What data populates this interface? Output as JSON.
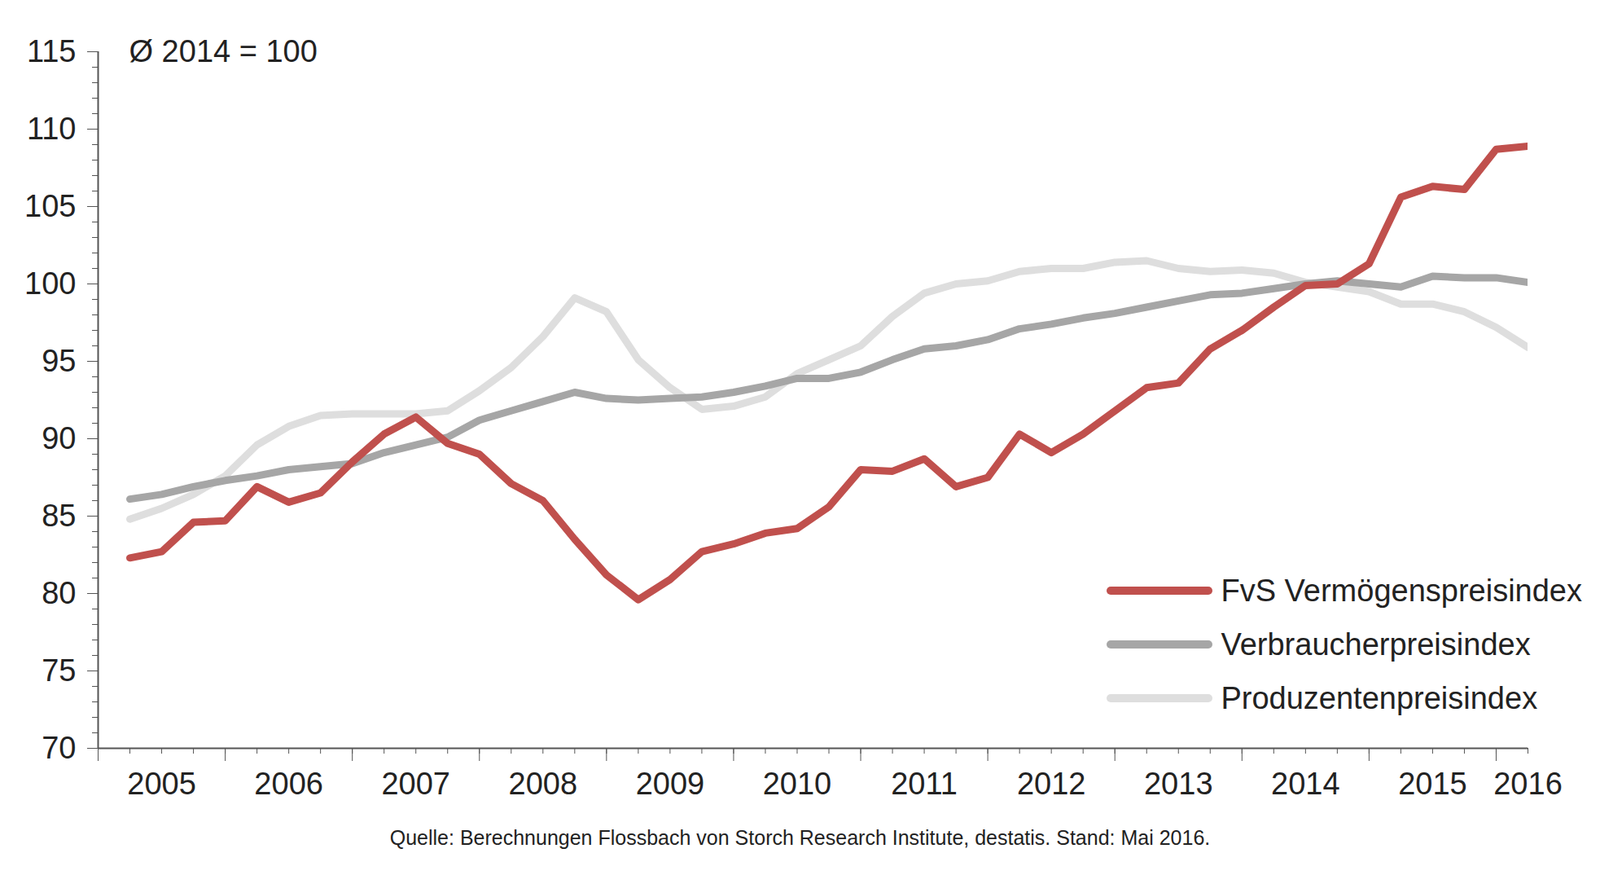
{
  "chart_data": {
    "type": "line",
    "annotation": "Ø 2014 = 100",
    "caption": "Quelle: Berechnungen Flossbach von Storch Research Institute, destatis. Stand: Mai 2016.",
    "legend": "bottom-right",
    "grid": false,
    "x": [
      2005.25,
      2005.5,
      2005.75,
      2006,
      2006.25,
      2006.5,
      2006.75,
      2007,
      2007.25,
      2007.5,
      2007.75,
      2008,
      2008.25,
      2008.5,
      2008.75,
      2009,
      2009.25,
      2009.5,
      2009.75,
      2010,
      2010.25,
      2010.5,
      2010.75,
      2011,
      2011.25,
      2011.5,
      2011.75,
      2012,
      2012.25,
      2012.5,
      2012.75,
      2013,
      2013.25,
      2013.5,
      2013.75,
      2014,
      2014.25,
      2014.5,
      2014.75,
      2015,
      2015.25,
      2015.5,
      2015.75,
      2016,
      2016.25
    ],
    "xlim": [
      2005,
      2016.25
    ],
    "xticks": [
      {
        "value": 2005.5,
        "label": "2005"
      },
      {
        "value": 2006.5,
        "label": "2006"
      },
      {
        "value": 2007.5,
        "label": "2007"
      },
      {
        "value": 2008.5,
        "label": "2008"
      },
      {
        "value": 2009.5,
        "label": "2009"
      },
      {
        "value": 2010.5,
        "label": "2010"
      },
      {
        "value": 2011.5,
        "label": "2011"
      },
      {
        "value": 2012.5,
        "label": "2012"
      },
      {
        "value": 2013.5,
        "label": "2013"
      },
      {
        "value": 2014.5,
        "label": "2014"
      },
      {
        "value": 2015.5,
        "label": "2015"
      },
      {
        "value": 2016.25,
        "label": "2016"
      }
    ],
    "ylim": [
      70,
      115
    ],
    "yticks": [
      70,
      75,
      80,
      85,
      90,
      95,
      100,
      105,
      110,
      115
    ],
    "series": [
      {
        "name": "FvS Vermögenspreisindex",
        "color": "#c0504d",
        "values": [
          82.3,
          82.7,
          84.6,
          84.7,
          86.9,
          85.9,
          86.5,
          88.5,
          90.3,
          91.4,
          89.7,
          89.0,
          87.1,
          86.0,
          83.5,
          81.2,
          79.6,
          80.9,
          82.7,
          83.2,
          83.9,
          84.2,
          85.6,
          88.0,
          87.9,
          88.7,
          86.9,
          87.5,
          90.3,
          89.1,
          90.3,
          91.8,
          93.3,
          93.6,
          95.8,
          97.0,
          98.5,
          99.9,
          100.0,
          101.3,
          105.6,
          106.3,
          106.1,
          108.7,
          108.9
        ]
      },
      {
        "name": "Verbraucherpreisindex",
        "color": "#a6a6a6",
        "values": [
          86.1,
          86.4,
          86.9,
          87.3,
          87.6,
          88.0,
          88.2,
          88.4,
          89.1,
          89.6,
          90.1,
          91.2,
          91.8,
          92.4,
          93.0,
          92.6,
          92.5,
          92.6,
          92.7,
          93.0,
          93.4,
          93.9,
          93.9,
          94.3,
          95.1,
          95.8,
          96.0,
          96.4,
          97.1,
          97.4,
          97.8,
          98.1,
          98.5,
          98.9,
          99.3,
          99.4,
          99.7,
          100.0,
          100.2,
          100.0,
          99.8,
          100.5,
          100.4,
          100.4,
          100.1
        ]
      },
      {
        "name": "Produzentenpreisindex",
        "color": "#dedede",
        "values": [
          84.8,
          85.5,
          86.4,
          87.6,
          89.6,
          90.8,
          91.5,
          91.6,
          91.6,
          91.6,
          91.8,
          93.1,
          94.6,
          96.6,
          99.1,
          98.2,
          95.1,
          93.3,
          91.9,
          92.1,
          92.7,
          94.2,
          95.1,
          96.0,
          97.9,
          99.4,
          100.0,
          100.2,
          100.8,
          101.0,
          101.0,
          101.4,
          101.5,
          101.0,
          100.8,
          100.9,
          100.7,
          100.1,
          99.8,
          99.5,
          98.7,
          98.7,
          98.2,
          97.2,
          95.9
        ]
      }
    ]
  }
}
